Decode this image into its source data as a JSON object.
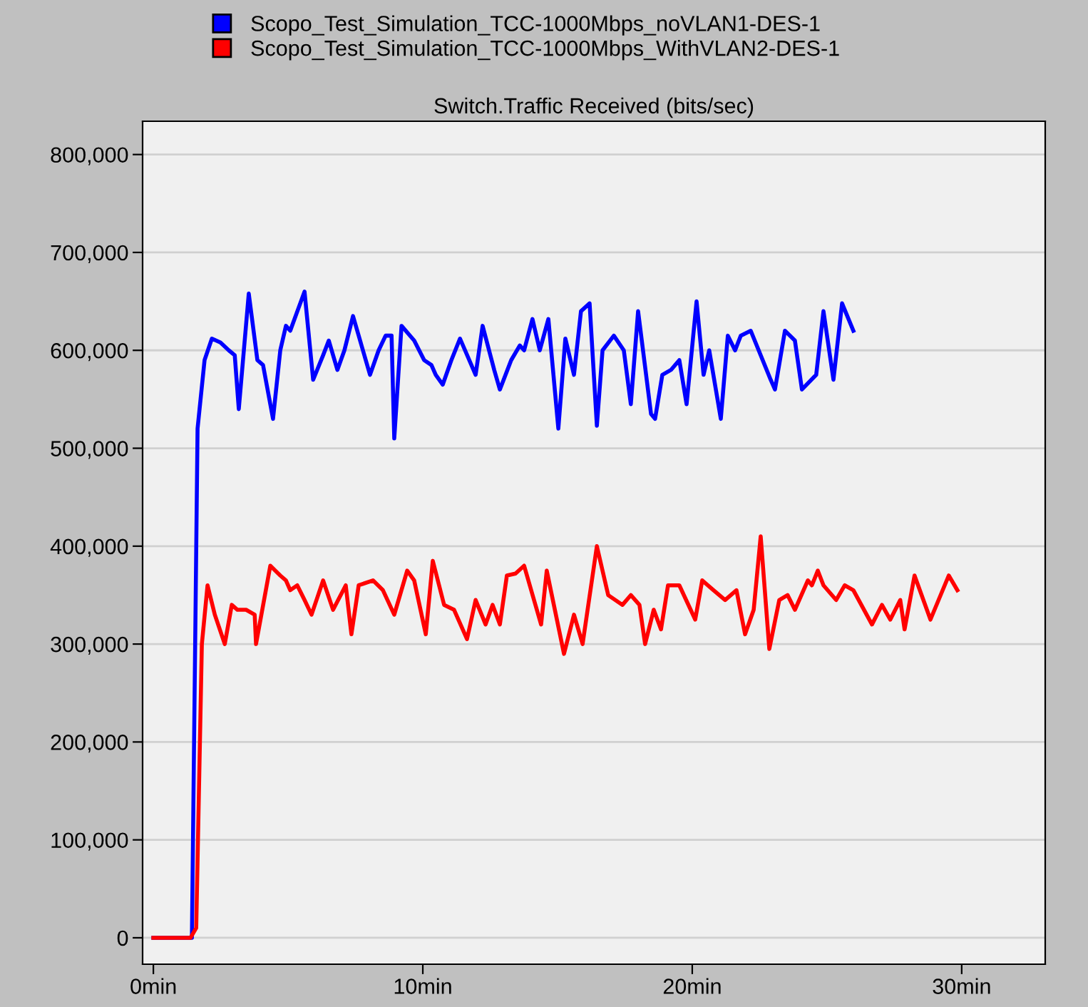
{
  "chart_data": {
    "type": "line",
    "title": "Switch.Traffic Received (bits/sec)",
    "xlim": [
      -0.4,
      33.1
    ],
    "ylim": [
      -27000,
      834000
    ],
    "xticks": [
      {
        "value": 0,
        "label": "0min"
      },
      {
        "value": 10,
        "label": "10min"
      },
      {
        "value": 20,
        "label": "20min"
      },
      {
        "value": 30,
        "label": "30min"
      }
    ],
    "yticks": [
      {
        "value": 0,
        "label": "0"
      },
      {
        "value": 100000,
        "label": "100,000"
      },
      {
        "value": 200000,
        "label": "200,000"
      },
      {
        "value": 300000,
        "label": "300,000"
      },
      {
        "value": 400000,
        "label": "400,000"
      },
      {
        "value": 500000,
        "label": "500,000"
      },
      {
        "value": 600000,
        "label": "600,000"
      },
      {
        "value": 700000,
        "label": "700,000"
      },
      {
        "value": 800000,
        "label": "800,000"
      }
    ],
    "grid": "y",
    "legend": "top",
    "marker": "none",
    "line_style": "solid",
    "series": [
      {
        "name": "Scopo_Test_Simulation_TCC-1000Mbps_noVLAN1-DES-1",
        "color": "#0000ff",
        "x": [
          0,
          1.43,
          1.64,
          1.9,
          2.17,
          2.49,
          2.8,
          3.02,
          3.17,
          3.54,
          3.86,
          4.07,
          4.44,
          4.71,
          4.92,
          5.08,
          5.61,
          5.93,
          6.3,
          6.51,
          6.83,
          7.09,
          7.41,
          8.04,
          8.36,
          8.62,
          8.84,
          8.94,
          9.21,
          9.68,
          10.05,
          10.32,
          10.48,
          10.74,
          11.06,
          11.38,
          11.96,
          12.22,
          12.65,
          12.86,
          13.28,
          13.6,
          13.76,
          14.07,
          14.34,
          14.66,
          15.03,
          15.29,
          15.61,
          15.87,
          16.19,
          16.46,
          16.67,
          17.09,
          17.46,
          17.72,
          17.99,
          18.47,
          18.62,
          18.89,
          19.21,
          19.52,
          19.79,
          20.16,
          20.42,
          20.63,
          21.06,
          21.32,
          21.59,
          21.8,
          22.17,
          22.91,
          23.07,
          23.44,
          23.81,
          24.07,
          24.6,
          24.87,
          25.24,
          25.56,
          25.98
        ],
        "values": [
          0,
          0,
          520000,
          590000,
          612000,
          608000,
          600000,
          595000,
          540000,
          658000,
          590000,
          585000,
          530000,
          600000,
          625000,
          620000,
          660000,
          570000,
          595000,
          610000,
          580000,
          600000,
          635000,
          575000,
          600000,
          615000,
          615000,
          510000,
          625000,
          610000,
          590000,
          585000,
          575000,
          565000,
          590000,
          612000,
          575000,
          625000,
          580000,
          560000,
          590000,
          605000,
          600000,
          632000,
          600000,
          632000,
          520000,
          612000,
          575000,
          640000,
          648000,
          523000,
          600000,
          615000,
          600000,
          545000,
          640000,
          535000,
          530000,
          575000,
          580000,
          590000,
          545000,
          650000,
          575000,
          600000,
          530000,
          615000,
          600000,
          615000,
          620000,
          570000,
          560000,
          620000,
          610000,
          560000,
          575000,
          640000,
          570000,
          648000,
          620000
        ]
      },
      {
        "name": "Scopo_Test_Simulation_TCC-1000Mbps_WithVLAN2-DES-1",
        "color": "#ff0000",
        "x": [
          0,
          1.38,
          1.59,
          1.8,
          2.01,
          2.28,
          2.65,
          2.91,
          3.12,
          3.44,
          3.76,
          3.81,
          4.34,
          4.71,
          4.92,
          5.08,
          5.34,
          5.61,
          5.87,
          6.3,
          6.67,
          7.14,
          7.35,
          7.62,
          8.15,
          8.52,
          8.94,
          9.42,
          9.68,
          10.11,
          10.37,
          10.79,
          11.16,
          11.64,
          11.96,
          12.33,
          12.59,
          12.86,
          13.12,
          13.44,
          13.76,
          14.18,
          14.39,
          14.6,
          15.24,
          15.61,
          15.93,
          16.46,
          16.88,
          17.41,
          17.72,
          18.04,
          18.25,
          18.57,
          18.84,
          19.1,
          19.52,
          20.11,
          20.37,
          20.79,
          21.22,
          21.64,
          21.96,
          22.28,
          22.54,
          22.86,
          23.23,
          23.54,
          23.81,
          24.29,
          24.44,
          24.66,
          24.87,
          25.34,
          25.66,
          25.98,
          26.67,
          27.04,
          27.35,
          27.72,
          27.88,
          28.25,
          28.84,
          29.52,
          29.84
        ],
        "values": [
          0,
          0,
          10000,
          300000,
          360000,
          330000,
          300000,
          340000,
          335000,
          335000,
          330000,
          300000,
          380000,
          370000,
          365000,
          355000,
          360000,
          345000,
          330000,
          365000,
          335000,
          360000,
          310000,
          360000,
          365000,
          355000,
          330000,
          375000,
          365000,
          310000,
          385000,
          340000,
          335000,
          305000,
          345000,
          320000,
          340000,
          320000,
          370000,
          372000,
          380000,
          340000,
          320000,
          375000,
          290000,
          330000,
          300000,
          400000,
          350000,
          340000,
          350000,
          340000,
          300000,
          335000,
          315000,
          360000,
          360000,
          325000,
          365000,
          355000,
          345000,
          355000,
          310000,
          335000,
          410000,
          295000,
          345000,
          350000,
          335000,
          365000,
          360000,
          375000,
          360000,
          345000,
          360000,
          355000,
          320000,
          340000,
          325000,
          345000,
          315000,
          370000,
          325000,
          370000,
          355000
        ]
      }
    ]
  }
}
